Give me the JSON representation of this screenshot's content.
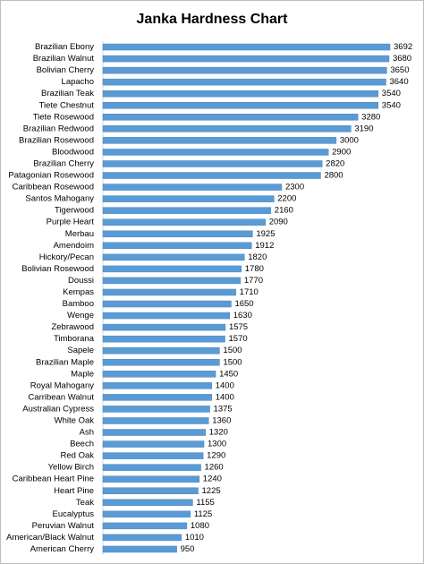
{
  "chart_data": {
    "type": "bar",
    "orientation": "horizontal",
    "title": "Janka Hardness Chart",
    "categories": [
      "Brazilian Ebony",
      "Brazilian Walnut",
      "Bolivian Cherry",
      "Lapacho",
      "Brazilian Teak",
      "Tiete Chestnut",
      "Tiete Rosewood",
      "Brazilian Redwood",
      "Brazilian Rosewood",
      "Bloodwood",
      "Brazilian Cherry",
      "Patagonian Rosewood",
      "Caribbean Rosewood",
      "Santos Mahogany",
      "Tigerwood",
      "Purple Heart",
      "Merbau",
      "Amendoim",
      "Hickory/Pecan",
      "Bolivian Rosewood",
      "Doussi",
      "Kempas",
      "Bamboo",
      "Wenge",
      "Zebrawood",
      "Timborana",
      "Sapele",
      "Brazilian Maple",
      "Maple",
      "Royal Mahogany",
      "Carribean Walnut",
      "Australian Cypress",
      "White Oak",
      "Ash",
      "Beech",
      "Red Oak",
      "Yellow Birch",
      "Caribbean Heart Pine",
      "Heart Pine",
      "Teak",
      "Eucalyptus",
      "Peruvian Walnut",
      "American/Black Walnut",
      "American Cherry"
    ],
    "values": [
      3692,
      3680,
      3650,
      3640,
      3540,
      3540,
      3280,
      3190,
      3000,
      2900,
      2820,
      2800,
      2300,
      2200,
      2160,
      2090,
      1925,
      1912,
      1820,
      1780,
      1770,
      1710,
      1650,
      1630,
      1575,
      1570,
      1500,
      1500,
      1450,
      1400,
      1400,
      1375,
      1360,
      1320,
      1300,
      1290,
      1260,
      1240,
      1225,
      1155,
      1125,
      1080,
      1010,
      950
    ],
    "color": "#5b9bd5"
  }
}
